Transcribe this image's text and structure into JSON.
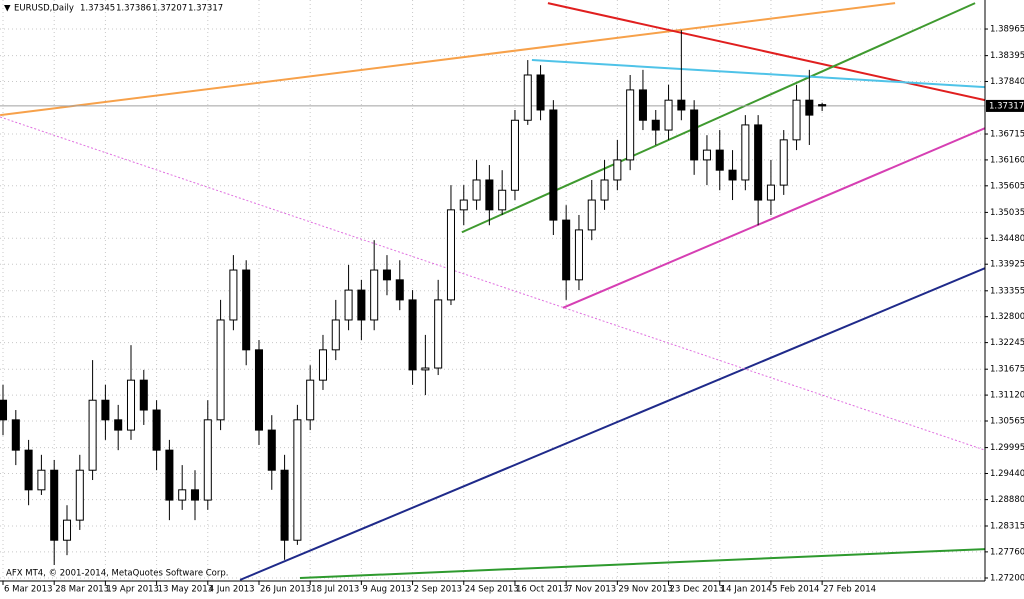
{
  "chart_data": {
    "type": "candlestick",
    "title": "EURUSD,Daily",
    "copyright": "AFX MT4, © 2001-2014, MetaQuotes Software Corp.",
    "x": [
      0,
      4,
      8,
      12,
      16,
      20,
      24,
      28,
      32,
      36,
      40,
      44,
      48,
      52,
      56,
      60,
      64,
      68,
      72,
      76,
      80,
      84,
      88,
      92,
      96,
      100,
      104,
      108,
      112,
      116,
      120,
      124,
      128,
      132,
      136,
      140,
      144,
      148,
      152,
      156,
      160,
      164,
      168,
      172,
      176,
      180,
      184,
      188,
      192,
      196,
      200,
      204,
      208,
      212,
      216,
      220,
      224,
      228,
      232,
      236,
      240,
      244,
      248,
      252,
      256
    ],
    "open": [
      1.3101,
      1.3059,
      1.2994,
      1.2909,
      1.2951,
      1.2801,
      1.2844,
      1.2951,
      1.3101,
      1.3059,
      1.3037,
      1.3144,
      1.308,
      1.2994,
      1.2887,
      1.2909,
      1.2887,
      1.3059,
      1.3273,
      1.338,
      1.3209,
      1.3037,
      1.2951,
      1.2801,
      1.3059,
      1.3144,
      1.3209,
      1.3273,
      1.3337,
      1.3273,
      1.338,
      1.3359,
      1.3316,
      1.3166,
      1.317,
      1.3316,
      1.3509,
      1.353,
      1.3573,
      1.3509,
      1.3551,
      1.3701,
      1.3798,
      1.3723,
      1.3487,
      1.3359,
      1.3466,
      1.353,
      1.3573,
      1.3616,
      1.3766,
      1.3701,
      1.368,
      1.3744,
      1.3723,
      1.3616,
      1.3637,
      1.3594,
      1.3573,
      1.3691,
      1.353,
      1.3562,
      1.3659,
      1.3744,
      1.37345
    ],
    "high": [
      1.3134,
      1.308,
      1.3016,
      1.2984,
      1.2973,
      1.2876,
      1.2984,
      1.3187,
      1.3134,
      1.3091,
      1.3219,
      1.3166,
      1.3101,
      1.3016,
      1.2962,
      1.2951,
      1.3101,
      1.3316,
      1.3412,
      1.3401,
      1.323,
      1.3069,
      1.2984,
      1.3091,
      1.3176,
      1.3241,
      1.3316,
      1.3391,
      1.3359,
      1.3444,
      1.3412,
      1.3401,
      1.3337,
      1.3241,
      1.3359,
      1.3562,
      1.3562,
      1.3616,
      1.3605,
      1.3594,
      1.3723,
      1.383,
      1.3819,
      1.3744,
      1.3519,
      1.3498,
      1.3573,
      1.3616,
      1.3659,
      1.3798,
      1.3809,
      1.3723,
      1.3777,
      1.3894,
      1.3744,
      1.3669,
      1.368,
      1.3637,
      1.3712,
      1.3712,
      1.3616,
      1.368,
      1.3777,
      1.3809,
      1.37386
    ],
    "low": [
      1.3026,
      1.2962,
      1.2876,
      1.2898,
      1.2748,
      1.2769,
      1.2823,
      1.293,
      1.3016,
      1.2994,
      1.3016,
      1.3048,
      1.2951,
      1.2844,
      1.2866,
      1.2844,
      1.2866,
      1.3037,
      1.3251,
      1.3176,
      1.3005,
      1.2909,
      1.2759,
      1.2791,
      1.3037,
      1.3123,
      1.3187,
      1.3251,
      1.323,
      1.3251,
      1.3326,
      1.3294,
      1.3134,
      1.3112,
      1.3155,
      1.3305,
      1.3476,
      1.3509,
      1.3476,
      1.3498,
      1.353,
      1.3691,
      1.3701,
      1.3455,
      1.3316,
      1.3337,
      1.3444,
      1.3509,
      1.3551,
      1.3594,
      1.368,
      1.3648,
      1.3659,
      1.3701,
      1.3584,
      1.3562,
      1.3551,
      1.353,
      1.3551,
      1.3476,
      1.3498,
      1.3541,
      1.3637,
      1.3648,
      1.37207
    ],
    "close": [
      1.3059,
      1.2994,
      1.2909,
      1.2951,
      1.2801,
      1.2844,
      1.2951,
      1.3101,
      1.3059,
      1.3037,
      1.3144,
      1.308,
      1.2994,
      1.2887,
      1.2909,
      1.2887,
      1.3059,
      1.3273,
      1.338,
      1.3209,
      1.3037,
      1.2951,
      1.2801,
      1.3059,
      1.3144,
      1.3209,
      1.3273,
      1.3337,
      1.3273,
      1.338,
      1.3359,
      1.3316,
      1.3166,
      1.317,
      1.3316,
      1.3509,
      1.353,
      1.3573,
      1.3509,
      1.3551,
      1.3701,
      1.3798,
      1.3723,
      1.3487,
      1.3359,
      1.3466,
      1.353,
      1.3573,
      1.3616,
      1.3766,
      1.3701,
      1.368,
      1.3744,
      1.3723,
      1.3616,
      1.3637,
      1.3594,
      1.3573,
      1.3691,
      1.353,
      1.3562,
      1.3659,
      1.3744,
      1.3712,
      1.37317
    ],
    "bull_color": "#ffffff",
    "bear_color": "#000000",
    "xlim": [
      -0.94,
      306.9
    ],
    "ylim": [
      1.27136,
      1.39587
    ],
    "xticks": [
      {
        "value": 0,
        "label": "6 Mar 2013"
      },
      {
        "value": 16,
        "label": "28 Mar 2013"
      },
      {
        "value": 32,
        "label": "19 Apr 2013"
      },
      {
        "value": 48,
        "label": "13 May 2013"
      },
      {
        "value": 64,
        "label": "4 Jun 2013"
      },
      {
        "value": 80,
        "label": "26 Jun 2013"
      },
      {
        "value": 96,
        "label": "18 Jul 2013"
      },
      {
        "value": 112,
        "label": "9 Aug 2013"
      },
      {
        "value": 128,
        "label": "2 Sep 2013"
      },
      {
        "value": 144,
        "label": "24 Sep 2013"
      },
      {
        "value": 160,
        "label": "16 Oct 2013"
      },
      {
        "value": 176,
        "label": "7 Nov 2013"
      },
      {
        "value": 192,
        "label": "29 Nov 2013"
      },
      {
        "value": 208,
        "label": "23 Dec 2013"
      },
      {
        "value": 224,
        "label": "14 Jan 2014"
      },
      {
        "value": 240,
        "label": "5 Feb 2014"
      },
      {
        "value": 256,
        "label": "27 Feb 2014"
      }
    ],
    "yticks": [
      1.38965,
      1.38395,
      {
        "value": 1.3784,
        "label": "1.37840"
      },
      1.36715,
      {
        "value": 1.3616,
        "label": "1.36160"
      },
      1.35605,
      1.35035,
      {
        "value": 1.3448,
        "label": "1.34480"
      },
      1.33925,
      1.33355,
      {
        "value": 1.328,
        "label": "1.32800"
      },
      1.32245,
      1.31675,
      {
        "value": 1.3112,
        "label": "1.31120"
      },
      1.30565,
      1.29995,
      {
        "value": 1.2944,
        "label": "1.29440"
      },
      {
        "value": 1.2888,
        "label": "1.28880"
      },
      1.28315,
      {
        "value": 1.2776,
        "label": "1.27760"
      },
      {
        "value": 1.272,
        "label": "1.27200"
      }
    ],
    "grid": true,
    "trendlines": [
      {
        "color": "#f7a14a",
        "style": "solid",
        "x": [
          -0.9,
          278.8
        ],
        "values": [
          1.3712,
          1.3952
        ]
      },
      {
        "color": "#e01f1f",
        "style": "solid",
        "x": [
          170.3,
          306.9
        ],
        "values": [
          1.3952,
          1.3744
        ]
      },
      {
        "color": "#3f9a2f",
        "style": "solid",
        "x": [
          143.4,
          303.8
        ],
        "values": [
          1.3461,
          1.3952
        ]
      },
      {
        "color": "#4fc3e8",
        "style": "solid",
        "x": [
          165.3,
          306.9
        ],
        "values": [
          1.383,
          1.3772
        ]
      },
      {
        "color": "#d63fb3",
        "style": "solid",
        "x": [
          175,
          306.9
        ],
        "values": [
          1.3299,
          1.3684
        ]
      },
      {
        "color": "#1f2a8a",
        "style": "solid",
        "x": [
          74.1,
          306.9
        ],
        "values": [
          1.2716,
          1.3384
        ]
      },
      {
        "color": "#e070e0",
        "style": "dotted",
        "x": [
          -0.9,
          306.9
        ],
        "values": [
          1.3708,
          1.2994
        ]
      },
      {
        "color": "#2e9a2e",
        "style": "solid",
        "x": [
          92.8,
          306.9
        ],
        "values": [
          1.272,
          1.2782
        ]
      }
    ]
  }
}
